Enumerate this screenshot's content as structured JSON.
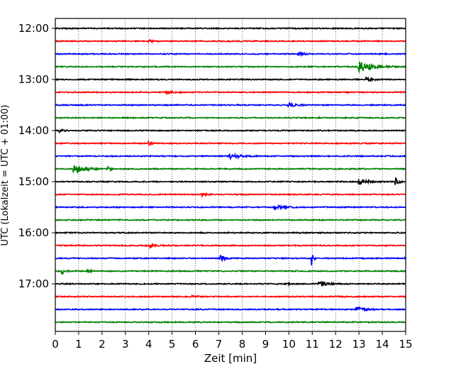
{
  "chart_data": {
    "type": "line",
    "title": "",
    "xlabel": "Zeit  [min]",
    "ylabel": "UTC (Lokalzeit = UTC + 01:00)",
    "xlim": [
      0,
      15
    ],
    "xticks": [
      "0",
      "1",
      "2",
      "3",
      "4",
      "5",
      "6",
      "7",
      "8",
      "9",
      "10",
      "11",
      "12",
      "13",
      "14",
      "15"
    ],
    "yticks": [
      {
        "label": "12:00",
        "trace": 0
      },
      {
        "label": "13:00",
        "trace": 4
      },
      {
        "label": "14:00",
        "trace": 8
      },
      {
        "label": "15:00",
        "trace": 12
      },
      {
        "label": "16:00",
        "trace": 16
      },
      {
        "label": "17:00",
        "trace": 20
      }
    ],
    "grid": "vertical dotted",
    "trace_count": 24,
    "trace_minutes": 15,
    "colors": [
      "#000000",
      "#ff0000",
      "#0000ff",
      "#008000"
    ],
    "noise_amplitude": 0.04,
    "events": [
      {
        "trace": 1,
        "minute": 4.0,
        "amp": 0.08,
        "dur": 0.5
      },
      {
        "trace": 2,
        "minute": 10.4,
        "amp": 0.15,
        "dur": 0.6
      },
      {
        "trace": 3,
        "minute": 13.0,
        "amp": 0.4,
        "dur": 1.6
      },
      {
        "trace": 4,
        "minute": 13.3,
        "amp": 0.2,
        "dur": 0.7
      },
      {
        "trace": 5,
        "minute": 4.7,
        "amp": 0.12,
        "dur": 0.8
      },
      {
        "trace": 6,
        "minute": 10.0,
        "amp": 0.15,
        "dur": 0.9
      },
      {
        "trace": 8,
        "minute": 0.2,
        "amp": 0.12,
        "dur": 0.4
      },
      {
        "trace": 9,
        "minute": 4.0,
        "amp": 0.12,
        "dur": 0.5
      },
      {
        "trace": 10,
        "minute": 7.5,
        "amp": 0.18,
        "dur": 1.2
      },
      {
        "trace": 11,
        "minute": 0.8,
        "amp": 0.35,
        "dur": 1.2
      },
      {
        "trace": 11,
        "minute": 2.3,
        "amp": 0.12,
        "dur": 0.4
      },
      {
        "trace": 12,
        "minute": 13.0,
        "amp": 0.22,
        "dur": 1.2
      },
      {
        "trace": 12,
        "minute": 14.6,
        "amp": 0.3,
        "dur": 0.3
      },
      {
        "trace": 13,
        "minute": 6.3,
        "amp": 0.12,
        "dur": 0.6
      },
      {
        "trace": 14,
        "minute": 9.4,
        "amp": 0.18,
        "dur": 1.0
      },
      {
        "trace": 17,
        "minute": 4.1,
        "amp": 0.1,
        "dur": 0.5
      },
      {
        "trace": 18,
        "minute": 7.1,
        "amp": 0.2,
        "dur": 0.6
      },
      {
        "trace": 18,
        "minute": 11.0,
        "amp": 0.6,
        "dur": 0.15
      },
      {
        "trace": 18,
        "minute": 15.0,
        "amp": 0.45,
        "dur": 0.5
      },
      {
        "trace": 19,
        "minute": 0.3,
        "amp": 0.2,
        "dur": 0.5
      },
      {
        "trace": 19,
        "minute": 1.4,
        "amp": 0.1,
        "dur": 0.4
      },
      {
        "trace": 20,
        "minute": 11.3,
        "amp": 0.22,
        "dur": 0.9
      },
      {
        "trace": 20,
        "minute": 10.0,
        "amp": 0.1,
        "dur": 0.3
      },
      {
        "trace": 21,
        "minute": 5.8,
        "amp": 0.1,
        "dur": 0.6
      },
      {
        "trace": 22,
        "minute": 12.9,
        "amp": 0.2,
        "dur": 0.8
      }
    ]
  }
}
